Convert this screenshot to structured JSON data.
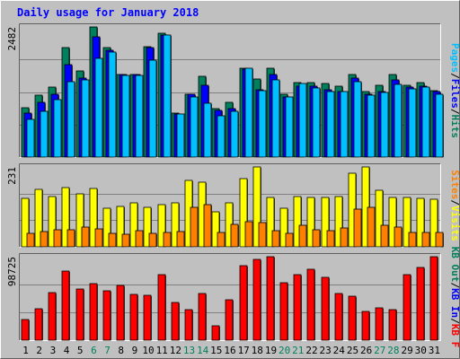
{
  "chart_data": {
    "type": "bar",
    "title": "Daily usage for January 2018",
    "categories": [
      "1",
      "2",
      "3",
      "4",
      "5",
      "6",
      "7",
      "8",
      "9",
      "10",
      "11",
      "12",
      "13",
      "14",
      "15",
      "16",
      "17",
      "18",
      "19",
      "20",
      "21",
      "22",
      "23",
      "24",
      "25",
      "26",
      "27",
      "28",
      "29",
      "30",
      "31"
    ],
    "weekend_days": [
      "6",
      "7",
      "13",
      "14",
      "20",
      "21",
      "27",
      "28"
    ],
    "grid": true,
    "colors": {
      "background": "#c0c0c0",
      "title": "#0000ff",
      "hits": "#00805c",
      "files": "#0000ff",
      "pages": "#00c0ff",
      "visits": "#ffff00",
      "sites": "#ff8000",
      "kbf": "#ff0000",
      "kbin": "#0000ff",
      "kbout": "#00805c",
      "weekend_label": "#00805c"
    },
    "panels": [
      {
        "id": "hits_files_pages",
        "max_label": "2482",
        "ylim": [
          0,
          2482
        ],
        "legend": [
          {
            "text": "Hits",
            "color": "#00805c"
          },
          {
            "text": "Files",
            "color": "#0000ff"
          },
          {
            "text": "Pages",
            "color": "#00c0ff"
          }
        ],
        "series": [
          {
            "name": "Hits",
            "values": [
              950,
              1180,
              1330,
              2080,
              1650,
              2482,
              2080,
              1580,
              1580,
              2100,
              2360,
              840,
              1200,
              1540,
              920,
              1040,
              1700,
              1490,
              1700,
              1200,
              1420,
              1420,
              1410,
              1360,
              1580,
              1250,
              1370,
              1570,
              1370,
              1420,
              1270
            ]
          },
          {
            "name": "Files",
            "values": [
              840,
              1050,
              1190,
              1760,
              1510,
              2300,
              2030,
              1580,
              1580,
              2080,
              2320,
              820,
              1190,
              1370,
              890,
              930,
              1670,
              1280,
              1580,
              1150,
              1350,
              1350,
              1280,
              1250,
              1510,
              1200,
              1250,
              1480,
              1340,
              1350,
              1250
            ]
          },
          {
            "name": "Pages",
            "values": [
              720,
              880,
              1100,
              1440,
              1480,
              1890,
              2000,
              1560,
              1550,
              1850,
              2330,
              820,
              1140,
              1030,
              790,
              880,
              1700,
              1260,
              1480,
              1150,
              1410,
              1320,
              1250,
              1250,
              1440,
              1180,
              1240,
              1380,
              1300,
              1340,
              1200
            ]
          }
        ]
      },
      {
        "id": "visits_sites",
        "max_label": "231",
        "ylim": [
          0,
          231
        ],
        "legend": [
          {
            "text": "Visits",
            "color": "#ffff00"
          },
          {
            "text": "Sites",
            "color": "#ff8000"
          }
        ],
        "series": [
          {
            "name": "Visits",
            "values": [
              140,
              166,
              146,
              172,
              152,
              168,
              112,
              116,
              128,
              114,
              122,
              128,
              192,
              186,
              100,
              126,
              198,
              231,
              144,
              112,
              145,
              142,
              144,
              146,
              212,
              231,
              163,
              144,
              142,
              140,
              138
            ]
          },
          {
            "name": "Sites",
            "values": [
              40,
              44,
              50,
              50,
              58,
              52,
              38,
              36,
              48,
              38,
              42,
              44,
              114,
              122,
              42,
              66,
              72,
              70,
              48,
              38,
              62,
              50,
              48,
              54,
              108,
              114,
              62,
              56,
              42,
              42,
              42
            ]
          }
        ]
      },
      {
        "id": "kbytes",
        "max_label": "98725",
        "ylim": [
          0,
          98725
        ],
        "legend": [
          {
            "text": "KB F",
            "color": "#ff0000"
          },
          {
            "text": "KB In",
            "color": "#0000ff"
          },
          {
            "text": "KB Out",
            "color": "#00805c"
          }
        ],
        "series": [
          {
            "name": "KB F",
            "values": [
              24000,
              37000,
              56000,
              82000,
              60000,
              67000,
              58000,
              65000,
              54000,
              53000,
              77000,
              45000,
              36000,
              55000,
              17000,
              48000,
              88000,
              96000,
              98725,
              68000,
              77000,
              84000,
              74000,
              55000,
              52000,
              34000,
              38000,
              36000,
              77000,
              86000,
              98725
            ]
          }
        ]
      }
    ]
  }
}
